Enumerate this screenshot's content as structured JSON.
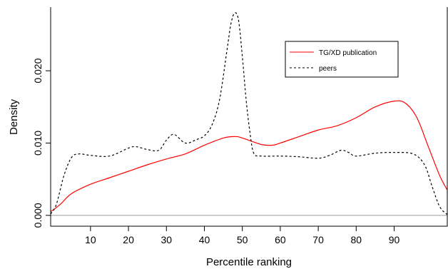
{
  "chart_data": {
    "type": "line",
    "title": "",
    "xlabel": "Percentile ranking",
    "ylabel": "Density",
    "xlim": [
      -0.5,
      104
    ],
    "ylim": [
      -0.0015,
      0.0288
    ],
    "x_ticks": [
      10,
      20,
      30,
      40,
      50,
      60,
      70,
      80,
      90
    ],
    "y_ticks": [
      0.0,
      0.01,
      0.02
    ],
    "y_tick_labels": [
      "0.000",
      "0.010",
      "0.020"
    ],
    "baseline": 0,
    "grid": false,
    "legend_position": "top-right",
    "series": [
      {
        "name": "TG/XD publication",
        "color": "#ff0000",
        "line_style": "solid",
        "x": [
          -0.5,
          2,
          5,
          10,
          15,
          20,
          25,
          30,
          35,
          40,
          45,
          48,
          50,
          55,
          58,
          60,
          65,
          70,
          75,
          80,
          85,
          90,
          93,
          96,
          99,
          102,
          104
        ],
        "y": [
          0.0005,
          0.0015,
          0.003,
          0.0043,
          0.0052,
          0.0061,
          0.007,
          0.0078,
          0.0085,
          0.0097,
          0.0107,
          0.0109,
          0.0107,
          0.0098,
          0.0097,
          0.01,
          0.0109,
          0.0118,
          0.0124,
          0.0135,
          0.015,
          0.0158,
          0.0155,
          0.0135,
          0.0095,
          0.0055,
          0.0035
        ]
      },
      {
        "name": "peers",
        "color": "#000000",
        "line_style": "dashed",
        "x": [
          -0.5,
          1,
          3,
          5,
          7,
          10,
          15,
          20,
          22,
          25,
          28,
          30,
          32,
          35,
          38,
          40,
          42,
          44,
          46,
          47,
          48,
          49,
          50,
          51,
          52,
          53,
          55,
          60,
          65,
          70,
          73,
          76,
          78,
          80,
          85,
          90,
          95,
          98,
          100,
          102,
          104
        ],
        "y": [
          0.0002,
          0.0015,
          0.0055,
          0.008,
          0.0085,
          0.0083,
          0.0082,
          0.0093,
          0.0095,
          0.0091,
          0.009,
          0.0104,
          0.0112,
          0.01,
          0.0105,
          0.011,
          0.0125,
          0.016,
          0.023,
          0.0265,
          0.028,
          0.027,
          0.022,
          0.016,
          0.0115,
          0.0086,
          0.0082,
          0.0082,
          0.0081,
          0.0079,
          0.0083,
          0.009,
          0.0087,
          0.0082,
          0.0086,
          0.0087,
          0.0085,
          0.007,
          0.004,
          0.0012,
          0.0001
        ]
      }
    ]
  },
  "colors": {
    "baseline": "#bebebe",
    "axis": "#000000",
    "legend_border": "#000000"
  }
}
